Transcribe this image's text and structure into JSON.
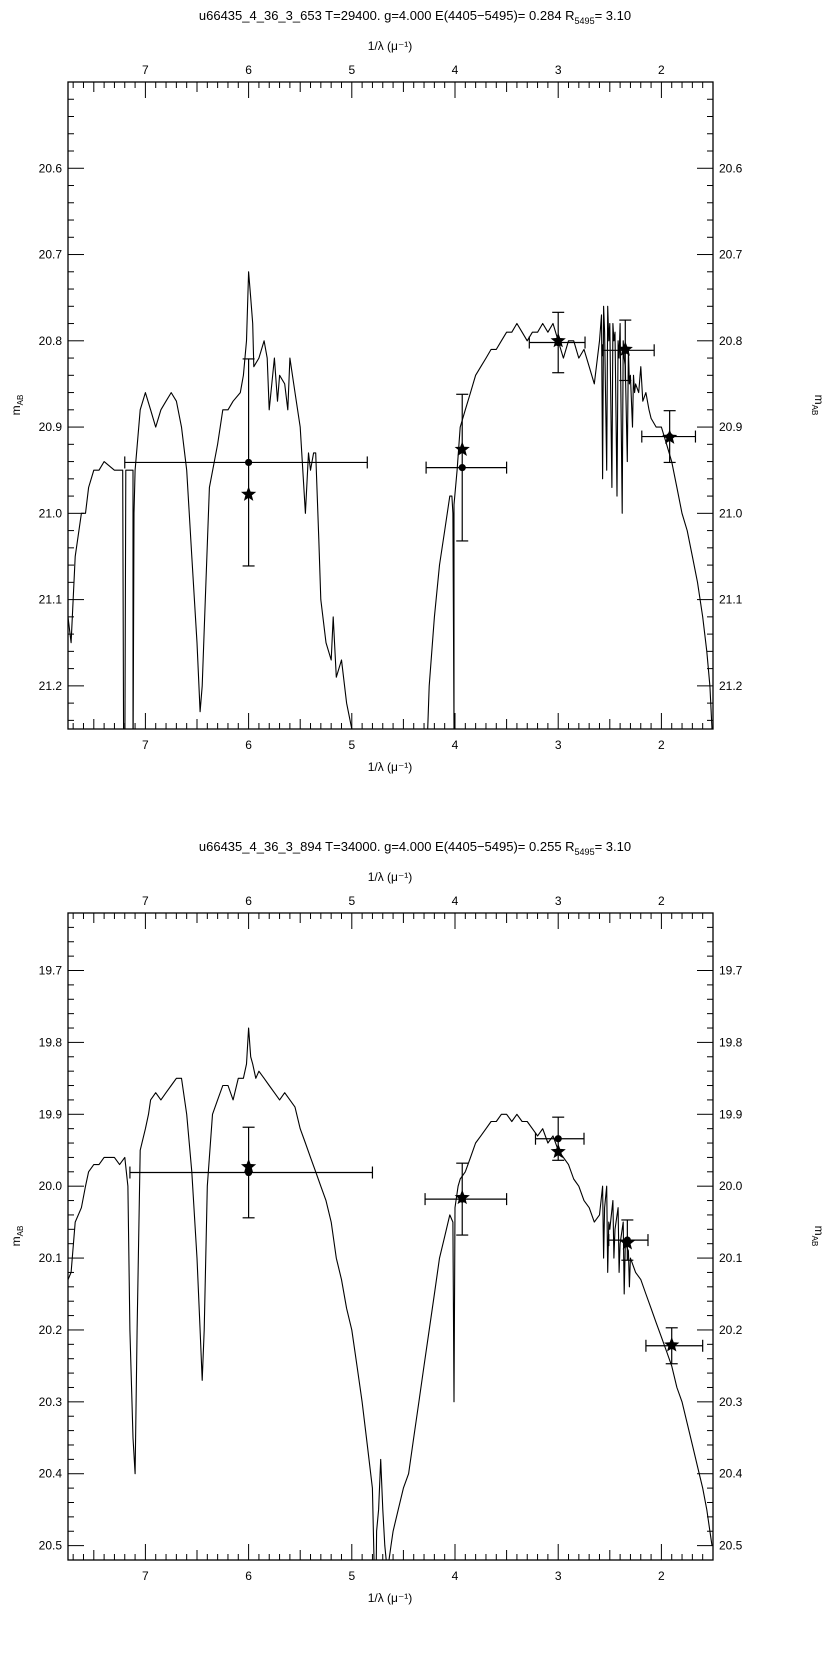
{
  "chart_data": [
    {
      "type": "line",
      "title": "u66435_4_36_3_653     T=29400. g=4.000 E(4405−5495)= 0.284 R",
      "title_sub": "5495",
      "title_tail": "= 3.10",
      "xlabel_top": "1/λ (μ⁻¹)",
      "xlabel_bottom": "1/λ (μ⁻¹)",
      "ylabel": "m",
      "ylabel_sub": "AB",
      "xlim": [
        7.75,
        1.5
      ],
      "ylim": [
        21.25,
        20.5
      ],
      "x_ticks": [
        7,
        6,
        5,
        4,
        3,
        2
      ],
      "x_tick_labels": [
        "7",
        "6",
        "5",
        "4",
        "3",
        "2"
      ],
      "y_ticks": [
        20.6,
        20.7,
        20.8,
        20.9,
        21.0,
        21.1,
        21.2
      ],
      "y_tick_labels": [
        "20.6",
        "20.7",
        "20.8",
        "20.9",
        "21.0",
        "21.1",
        "21.2"
      ],
      "series": [
        {
          "kind": "model_spectrum",
          "x": [
            7.75,
            7.72,
            7.68,
            7.62,
            7.58,
            7.55,
            7.5,
            7.45,
            7.4,
            7.3,
            7.25,
            7.22,
            7.21,
            7.2,
            7.19,
            7.12,
            7.12,
            7.11,
            7.1,
            7.05,
            7.0,
            6.95,
            6.9,
            6.85,
            6.8,
            6.75,
            6.7,
            6.65,
            6.6,
            6.55,
            6.5,
            6.47,
            6.45,
            6.42,
            6.38,
            6.3,
            6.25,
            6.2,
            6.15,
            6.08,
            6.05,
            6.02,
            6.0,
            5.98,
            5.96,
            5.95,
            5.9,
            5.85,
            5.82,
            5.8,
            5.75,
            5.72,
            5.7,
            5.65,
            5.62,
            5.6,
            5.55,
            5.5,
            5.45,
            5.42,
            5.4,
            5.37,
            5.35,
            5.32,
            5.3,
            5.25,
            5.2,
            5.18,
            5.15,
            5.1,
            5.05,
            5.0,
            4.98,
            4.97
          ],
          "y": [
            21.12,
            21.15,
            21.05,
            21.0,
            21.0,
            20.97,
            20.95,
            20.95,
            20.94,
            20.95,
            20.95,
            20.95,
            21.3,
            21.3,
            20.95,
            20.95,
            21.3,
            21.0,
            20.95,
            20.88,
            20.86,
            20.88,
            20.9,
            20.88,
            20.87,
            20.86,
            20.87,
            20.9,
            20.95,
            21.05,
            21.15,
            21.23,
            21.2,
            21.1,
            20.97,
            20.92,
            20.88,
            20.88,
            20.87,
            20.86,
            20.84,
            20.8,
            20.72,
            20.75,
            20.78,
            20.83,
            20.82,
            20.8,
            20.82,
            20.88,
            20.82,
            20.87,
            20.84,
            20.85,
            20.88,
            20.82,
            20.86,
            20.9,
            21.0,
            20.93,
            20.95,
            20.93,
            20.93,
            21.03,
            21.1,
            21.15,
            21.17,
            21.12,
            21.19,
            21.17,
            21.22,
            21.25,
            21.26,
            21.28
          ]
        },
        {
          "kind": "model_spectrum",
          "x": [
            4.27,
            4.25,
            4.2,
            4.15,
            4.1,
            4.05,
            4.03,
            4.02,
            4.01,
            4.01,
            3.98,
            3.95,
            3.9,
            3.85,
            3.8,
            3.75,
            3.7,
            3.65,
            3.6,
            3.55,
            3.5,
            3.45,
            3.4,
            3.35,
            3.3,
            3.25,
            3.2,
            3.15,
            3.1,
            3.05,
            3.0,
            2.95,
            2.9,
            2.85,
            2.8,
            2.75,
            2.7,
            2.65,
            2.6,
            2.58,
            2.57,
            2.56,
            2.55,
            2.53,
            2.52,
            2.51,
            2.5,
            2.48,
            2.47,
            2.46,
            2.45,
            2.43,
            2.42,
            2.41,
            2.4,
            2.38,
            2.37,
            2.36,
            2.35,
            2.33,
            2.32,
            2.31,
            2.3,
            2.28,
            2.27,
            2.26,
            2.25,
            2.22,
            2.2,
            2.18,
            2.15,
            2.12,
            2.1,
            2.05,
            2.0,
            1.95,
            1.9,
            1.85,
            1.8,
            1.75,
            1.7,
            1.65,
            1.6,
            1.56,
            1.53,
            1.51
          ],
          "y": [
            21.27,
            21.2,
            21.12,
            21.06,
            21.02,
            20.98,
            20.98,
            21.0,
            21.25,
            20.99,
            20.95,
            20.9,
            20.88,
            20.86,
            20.84,
            20.83,
            20.82,
            20.81,
            20.81,
            20.8,
            20.79,
            20.79,
            20.78,
            20.79,
            20.8,
            20.79,
            20.79,
            20.78,
            20.79,
            20.78,
            20.8,
            20.82,
            20.8,
            20.8,
            20.82,
            20.81,
            20.83,
            20.85,
            20.8,
            20.77,
            20.96,
            20.76,
            20.79,
            20.95,
            20.76,
            20.8,
            20.78,
            20.97,
            20.78,
            20.8,
            20.79,
            20.98,
            20.8,
            20.82,
            20.78,
            21.0,
            20.8,
            20.82,
            20.83,
            20.94,
            20.81,
            20.85,
            20.84,
            20.9,
            20.84,
            20.86,
            20.85,
            20.86,
            20.83,
            20.87,
            20.86,
            20.88,
            20.89,
            20.9,
            20.9,
            20.92,
            20.94,
            20.97,
            21.0,
            21.02,
            21.05,
            21.08,
            21.12,
            21.16,
            21.2,
            21.25
          ]
        },
        {
          "kind": "observed_circles",
          "x": [
            6.0,
            3.93,
            3.0,
            2.35,
            1.92
          ],
          "y": [
            20.941,
            20.947,
            20.802,
            20.811,
            20.911
          ],
          "yerr": [
            0.12,
            0.085,
            0.035,
            0.035,
            0.03
          ],
          "xerr_low": [
            1.2,
            0.35,
            0.28,
            0.22,
            0.27
          ],
          "xerr_high": [
            1.15,
            0.43,
            0.26,
            0.28,
            0.25
          ]
        },
        {
          "kind": "synthetic_stars",
          "x": [
            6.0,
            3.93,
            3.0,
            2.35,
            1.92
          ],
          "y": [
            20.978,
            20.926,
            20.8,
            20.81,
            20.912
          ]
        }
      ]
    },
    {
      "type": "line",
      "title": "u66435_4_36_3_894     T=34000. g=4.000 E(4405−5495)= 0.255 R",
      "title_sub": "5495",
      "title_tail": "= 3.10",
      "xlabel_top": "1/λ (μ⁻¹)",
      "xlabel_bottom": "1/λ (μ⁻¹)",
      "ylabel": "m",
      "ylabel_sub": "AB",
      "xlim": [
        7.75,
        1.5
      ],
      "ylim": [
        20.52,
        19.62
      ],
      "x_ticks": [
        7,
        6,
        5,
        4,
        3,
        2
      ],
      "x_tick_labels": [
        "7",
        "6",
        "5",
        "4",
        "3",
        "2"
      ],
      "y_ticks": [
        19.7,
        19.8,
        19.9,
        20.0,
        20.1,
        20.2,
        20.3,
        20.4,
        20.5
      ],
      "y_tick_labels": [
        "19.7",
        "19.8",
        "19.9",
        "20.0",
        "20.1",
        "20.2",
        "20.3",
        "20.4",
        "20.5"
      ],
      "series": [
        {
          "kind": "model_spectrum",
          "x": [
            7.75,
            7.72,
            7.68,
            7.62,
            7.58,
            7.55,
            7.5,
            7.45,
            7.4,
            7.3,
            7.25,
            7.2,
            7.17,
            7.15,
            7.12,
            7.1,
            7.08,
            7.05,
            7.0,
            6.97,
            6.95,
            6.9,
            6.85,
            6.8,
            6.75,
            6.7,
            6.65,
            6.6,
            6.55,
            6.5,
            6.47,
            6.45,
            6.43,
            6.4,
            6.35,
            6.3,
            6.25,
            6.2,
            6.15,
            6.1,
            6.05,
            6.02,
            6.0,
            5.98,
            5.96,
            5.93,
            5.9,
            5.85,
            5.8,
            5.75,
            5.7,
            5.65,
            5.6,
            5.55,
            5.5,
            5.45,
            5.4,
            5.35,
            5.3,
            5.25,
            5.2,
            5.15,
            5.1,
            5.05,
            5.0,
            4.95,
            4.9,
            4.85,
            4.8,
            4.78,
            4.77,
            4.76,
            4.74,
            4.72,
            4.7,
            4.68,
            4.66,
            4.64,
            4.62,
            4.6,
            4.55,
            4.5,
            4.45,
            4.4,
            4.35,
            4.3,
            4.25,
            4.2,
            4.15,
            4.1,
            4.05,
            4.02,
            4.01,
            4.0,
            3.99,
            3.97,
            3.95,
            3.9
          ],
          "y": [
            20.13,
            20.12,
            20.05,
            20.03,
            20.0,
            19.98,
            19.97,
            19.97,
            19.96,
            19.96,
            19.97,
            19.96,
            20.0,
            20.2,
            20.35,
            20.4,
            20.2,
            19.95,
            19.92,
            19.9,
            19.88,
            19.87,
            19.88,
            19.87,
            19.86,
            19.85,
            19.85,
            19.9,
            19.98,
            20.1,
            20.2,
            20.27,
            20.2,
            20.0,
            19.9,
            19.88,
            19.86,
            19.86,
            19.88,
            19.85,
            19.85,
            19.83,
            19.78,
            19.82,
            19.83,
            19.85,
            19.84,
            19.85,
            19.86,
            19.87,
            19.88,
            19.87,
            19.88,
            19.89,
            19.92,
            19.94,
            19.96,
            19.98,
            20.0,
            20.02,
            20.05,
            20.1,
            20.13,
            20.17,
            20.2,
            20.25,
            20.3,
            20.36,
            20.42,
            20.55,
            20.62,
            20.48,
            20.45,
            20.38,
            20.45,
            20.5,
            20.53,
            20.52,
            20.5,
            20.48,
            20.45,
            20.42,
            20.4,
            20.35,
            20.3,
            20.25,
            20.2,
            20.15,
            20.1,
            20.07,
            20.04,
            20.05,
            20.3,
            20.03,
            20.02,
            20.0,
            19.99,
            19.98
          ]
        },
        {
          "kind": "model_spectrum",
          "x": [
            3.9,
            3.85,
            3.8,
            3.75,
            3.7,
            3.65,
            3.6,
            3.55,
            3.5,
            3.45,
            3.4,
            3.35,
            3.3,
            3.25,
            3.2,
            3.15,
            3.1,
            3.05,
            3.0,
            2.95,
            2.9,
            2.85,
            2.8,
            2.75,
            2.7,
            2.65,
            2.6,
            2.57,
            2.56,
            2.55,
            2.53,
            2.52,
            2.51,
            2.5,
            2.47,
            2.46,
            2.45,
            2.42,
            2.41,
            2.4,
            2.37,
            2.36,
            2.35,
            2.32,
            2.31,
            2.3,
            2.25,
            2.2,
            2.15,
            2.1,
            2.05,
            2.0,
            1.95,
            1.9,
            1.85,
            1.8,
            1.75,
            1.7,
            1.65,
            1.6,
            1.56,
            1.53,
            1.51
          ],
          "y": [
            19.98,
            19.96,
            19.94,
            19.93,
            19.92,
            19.91,
            19.91,
            19.9,
            19.9,
            19.91,
            19.9,
            19.91,
            19.91,
            19.92,
            19.93,
            19.92,
            19.94,
            19.93,
            19.95,
            19.96,
            19.97,
            19.99,
            20.0,
            20.02,
            20.03,
            20.05,
            20.04,
            20.0,
            20.1,
            20.03,
            20.0,
            20.12,
            20.05,
            20.06,
            20.02,
            20.1,
            20.06,
            20.03,
            20.12,
            20.08,
            20.05,
            20.15,
            20.08,
            20.09,
            20.14,
            20.1,
            20.12,
            20.13,
            20.15,
            20.17,
            20.19,
            20.21,
            20.23,
            20.25,
            20.28,
            20.3,
            20.33,
            20.36,
            20.39,
            20.42,
            20.45,
            20.48,
            20.5
          ]
        },
        {
          "kind": "observed_circles",
          "x": [
            6.0,
            3.93,
            3.0,
            2.33,
            1.9
          ],
          "y": [
            19.981,
            20.018,
            19.934,
            20.075,
            20.222
          ],
          "yerr": [
            0.063,
            0.05,
            0.03,
            0.028,
            0.025
          ],
          "xerr_low": [
            1.15,
            0.36,
            0.22,
            0.18,
            0.25
          ],
          "xerr_high": [
            1.2,
            0.43,
            0.25,
            0.2,
            0.3
          ]
        },
        {
          "kind": "synthetic_stars",
          "x": [
            6.0,
            3.93,
            3.0,
            2.33,
            1.9
          ],
          "y": [
            19.973,
            20.016,
            19.952,
            20.079,
            20.221
          ]
        }
      ]
    }
  ]
}
